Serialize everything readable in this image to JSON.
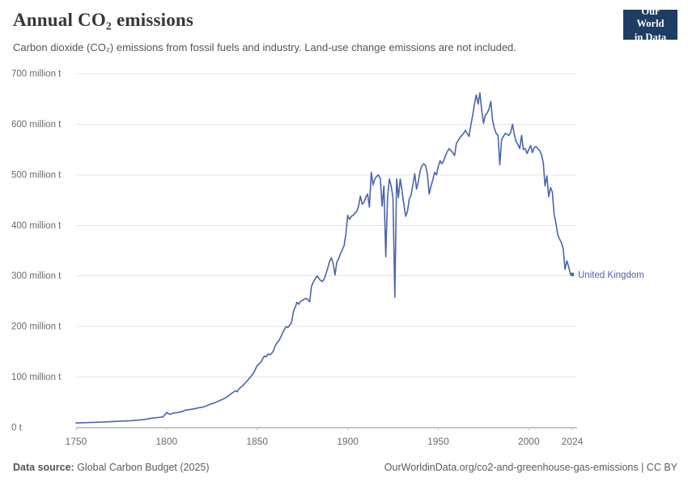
{
  "header": {
    "title": "Annual CO₂ emissions",
    "subtitle": "Carbon dioxide (CO₂) emissions from fossil fuels and industry. Land-use change emissions are not included.",
    "logo": {
      "line1": "Our World",
      "line2": "in Data",
      "bg_color": "#1d3d63",
      "accent_color": "#e2383d"
    }
  },
  "footer": {
    "source_label": "Data source:",
    "source_value": " Global Carbon Budget (2025)",
    "link": "OurWorldinData.org/co2-and-greenhouse-gas-emissions | CC BY"
  },
  "chart_data": {
    "type": "line",
    "title": "Annual CO₂ emissions",
    "entity": "United Kingdom",
    "unit": "million t",
    "xlim": [
      1750,
      2024
    ],
    "ylim": [
      0,
      700
    ],
    "grid": true,
    "legend_position": "end-of-line-label",
    "line_color": "#4a64ad",
    "grid_color": "#e4e4e4",
    "axis_color": "#8c8c8c",
    "tick_color": "#6b6b6b",
    "x_ticks": [
      {
        "value": 1750,
        "label": "1750"
      },
      {
        "value": 1800,
        "label": "1800"
      },
      {
        "value": 1850,
        "label": "1850"
      },
      {
        "value": 1900,
        "label": "1900"
      },
      {
        "value": 1950,
        "label": "1950"
      },
      {
        "value": 2000,
        "label": "2000"
      },
      {
        "value": 2024,
        "label": "2024"
      }
    ],
    "y_ticks": [
      {
        "value": 0,
        "label": "0 t"
      },
      {
        "value": 100,
        "label": "100 million t"
      },
      {
        "value": 200,
        "label": "200 million t"
      },
      {
        "value": 300,
        "label": "300 million t"
      },
      {
        "value": 400,
        "label": "400 million t"
      },
      {
        "value": 500,
        "label": "500 million t"
      },
      {
        "value": 600,
        "label": "600 million t"
      },
      {
        "value": 700,
        "label": "700 million t"
      }
    ],
    "series": [
      {
        "name": "United Kingdom",
        "color": "#4a64ad",
        "points": [
          [
            1750,
            9.3
          ],
          [
            1753,
            9.7
          ],
          [
            1756,
            10.1
          ],
          [
            1759,
            10.4
          ],
          [
            1762,
            10.8
          ],
          [
            1765,
            11.2
          ],
          [
            1768,
            11.7
          ],
          [
            1771,
            12.3
          ],
          [
            1774,
            12.8
          ],
          [
            1777,
            13.3
          ],
          [
            1780,
            13.7
          ],
          [
            1783,
            14.5
          ],
          [
            1786,
            15.6
          ],
          [
            1789,
            17
          ],
          [
            1792,
            18.9
          ],
          [
            1795,
            20
          ],
          [
            1798,
            21.3
          ],
          [
            1800,
            30.1
          ],
          [
            1801,
            27.5
          ],
          [
            1802,
            26.5
          ],
          [
            1803,
            28
          ],
          [
            1805,
            29.5
          ],
          [
            1807,
            30.5
          ],
          [
            1809,
            32.5
          ],
          [
            1810,
            34.3
          ],
          [
            1812,
            35.5
          ],
          [
            1814,
            36.5
          ],
          [
            1816,
            38
          ],
          [
            1818,
            39.5
          ],
          [
            1820,
            40.7
          ],
          [
            1822,
            43
          ],
          [
            1824,
            46.5
          ],
          [
            1826,
            48.5
          ],
          [
            1828,
            51.5
          ],
          [
            1830,
            54.7
          ],
          [
            1832,
            58
          ],
          [
            1834,
            62.5
          ],
          [
            1836,
            68
          ],
          [
            1838,
            73
          ],
          [
            1839,
            71
          ],
          [
            1840,
            76.9
          ],
          [
            1842,
            83
          ],
          [
            1844,
            90.5
          ],
          [
            1846,
            99
          ],
          [
            1848,
            108
          ],
          [
            1850,
            122.7
          ],
          [
            1851,
            126
          ],
          [
            1852,
            129
          ],
          [
            1853,
            136
          ],
          [
            1854,
            142
          ],
          [
            1855,
            140
          ],
          [
            1856,
            146
          ],
          [
            1857,
            144
          ],
          [
            1858,
            147
          ],
          [
            1859,
            152
          ],
          [
            1860,
            162
          ],
          [
            1861,
            168
          ],
          [
            1862,
            172
          ],
          [
            1863,
            179
          ],
          [
            1864,
            187
          ],
          [
            1865,
            194
          ],
          [
            1866,
            200
          ],
          [
            1867,
            198
          ],
          [
            1868,
            203
          ],
          [
            1869,
            208
          ],
          [
            1870,
            229
          ],
          [
            1871,
            238
          ],
          [
            1872,
            248
          ],
          [
            1873,
            244
          ],
          [
            1874,
            250
          ],
          [
            1875,
            252
          ],
          [
            1876,
            254
          ],
          [
            1877,
            256
          ],
          [
            1878,
            253
          ],
          [
            1879,
            249
          ],
          [
            1880,
            279
          ],
          [
            1881,
            288
          ],
          [
            1882,
            294
          ],
          [
            1883,
            300
          ],
          [
            1884,
            296
          ],
          [
            1885,
            291
          ],
          [
            1886,
            289
          ],
          [
            1887,
            294
          ],
          [
            1888,
            304
          ],
          [
            1889,
            316
          ],
          [
            1890,
            329
          ],
          [
            1891,
            336
          ],
          [
            1892,
            324
          ],
          [
            1893,
            302
          ],
          [
            1894,
            328
          ],
          [
            1895,
            334
          ],
          [
            1896,
            344
          ],
          [
            1897,
            352
          ],
          [
            1898,
            360
          ],
          [
            1899,
            383
          ],
          [
            1900,
            420
          ],
          [
            1901,
            412
          ],
          [
            1902,
            418
          ],
          [
            1903,
            420
          ],
          [
            1904,
            424
          ],
          [
            1905,
            428
          ],
          [
            1906,
            438
          ],
          [
            1907,
            458
          ],
          [
            1908,
            442
          ],
          [
            1909,
            446
          ],
          [
            1910,
            456
          ],
          [
            1911,
            462
          ],
          [
            1912,
            436
          ],
          [
            1913,
            505
          ],
          [
            1914,
            480
          ],
          [
            1915,
            492
          ],
          [
            1916,
            497
          ],
          [
            1917,
            500
          ],
          [
            1918,
            492
          ],
          [
            1919,
            438
          ],
          [
            1920,
            478
          ],
          [
            1921,
            338
          ],
          [
            1922,
            455
          ],
          [
            1923,
            492
          ],
          [
            1924,
            478
          ],
          [
            1925,
            455
          ],
          [
            1926,
            258
          ],
          [
            1927,
            492
          ],
          [
            1928,
            455
          ],
          [
            1929,
            492
          ],
          [
            1930,
            468
          ],
          [
            1931,
            442
          ],
          [
            1932,
            418
          ],
          [
            1933,
            428
          ],
          [
            1934,
            452
          ],
          [
            1935,
            460
          ],
          [
            1936,
            480
          ],
          [
            1937,
            502
          ],
          [
            1938,
            472
          ],
          [
            1939,
            486
          ],
          [
            1940,
            508
          ],
          [
            1941,
            518
          ],
          [
            1942,
            522
          ],
          [
            1943,
            518
          ],
          [
            1944,
            502
          ],
          [
            1945,
            462
          ],
          [
            1946,
            478
          ],
          [
            1947,
            490
          ],
          [
            1948,
            505
          ],
          [
            1949,
            500
          ],
          [
            1950,
            516
          ],
          [
            1951,
            528
          ],
          [
            1952,
            522
          ],
          [
            1953,
            528
          ],
          [
            1954,
            538
          ],
          [
            1955,
            546
          ],
          [
            1956,
            552
          ],
          [
            1957,
            548
          ],
          [
            1958,
            544
          ],
          [
            1959,
            538
          ],
          [
            1960,
            562
          ],
          [
            1961,
            568
          ],
          [
            1962,
            574
          ],
          [
            1963,
            578
          ],
          [
            1964,
            582
          ],
          [
            1965,
            588
          ],
          [
            1966,
            582
          ],
          [
            1967,
            576
          ],
          [
            1968,
            598
          ],
          [
            1969,
            618
          ],
          [
            1970,
            640
          ],
          [
            1971,
            658
          ],
          [
            1972,
            640
          ],
          [
            1973,
            662
          ],
          [
            1974,
            628
          ],
          [
            1975,
            602
          ],
          [
            1976,
            618
          ],
          [
            1977,
            622
          ],
          [
            1978,
            630
          ],
          [
            1979,
            645
          ],
          [
            1980,
            608
          ],
          [
            1981,
            592
          ],
          [
            1982,
            582
          ],
          [
            1983,
            578
          ],
          [
            1984,
            520
          ],
          [
            1985,
            570
          ],
          [
            1986,
            576
          ],
          [
            1987,
            582
          ],
          [
            1988,
            580
          ],
          [
            1989,
            578
          ],
          [
            1990,
            584
          ],
          [
            1991,
            600
          ],
          [
            1992,
            580
          ],
          [
            1993,
            566
          ],
          [
            1994,
            560
          ],
          [
            1995,
            552
          ],
          [
            1996,
            578
          ],
          [
            1997,
            550
          ],
          [
            1998,
            552
          ],
          [
            1999,
            542
          ],
          [
            2000,
            550
          ],
          [
            2001,
            558
          ],
          [
            2002,
            544
          ],
          [
            2003,
            554
          ],
          [
            2004,
            556
          ],
          [
            2005,
            552
          ],
          [
            2006,
            548
          ],
          [
            2007,
            540
          ],
          [
            2008,
            524
          ],
          [
            2009,
            478
          ],
          [
            2010,
            498
          ],
          [
            2011,
            457
          ],
          [
            2012,
            475
          ],
          [
            2013,
            466
          ],
          [
            2014,
            422
          ],
          [
            2015,
            404
          ],
          [
            2016,
            381
          ],
          [
            2017,
            373
          ],
          [
            2018,
            366
          ],
          [
            2019,
            354
          ],
          [
            2020,
            313
          ],
          [
            2021,
            330
          ],
          [
            2022,
            319
          ],
          [
            2023,
            303
          ],
          [
            2024,
            303
          ]
        ]
      }
    ]
  }
}
